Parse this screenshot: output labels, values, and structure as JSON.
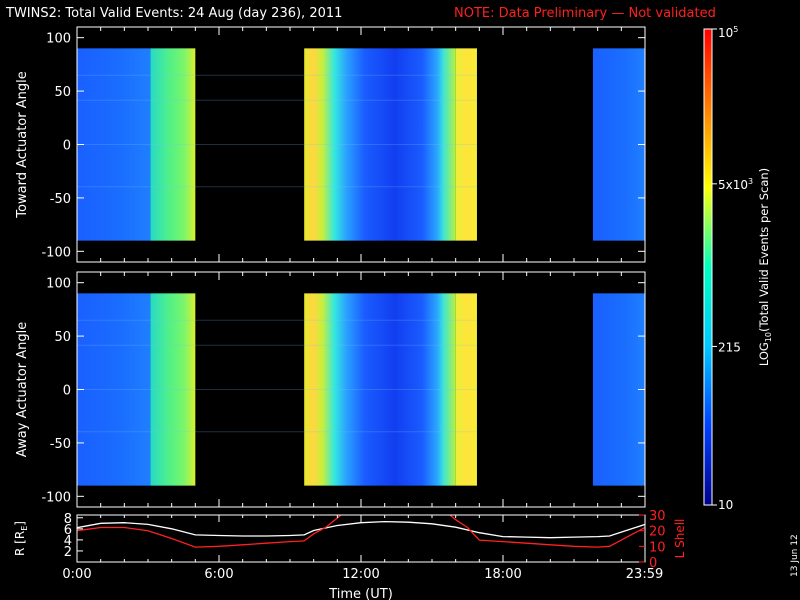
{
  "title": "TWINS2: Total Valid Events: 24 Aug (day 236), 2011",
  "note": "NOTE: Data Preliminary — Not validated",
  "datestamp": "13 Jun 12",
  "colors": {
    "colorbar": [
      "#00008b",
      "#0040ff",
      "#00c8ff",
      "#00ffc0",
      "#ffff00",
      "#ff8000",
      "#ff0000"
    ],
    "lshell": "#ff2020",
    "r": "#ffffff"
  },
  "chart_data": [
    {
      "type": "heatmap",
      "ylabel": "Toward Actuator Angle",
      "ylim": [
        -110,
        110
      ],
      "yticks": [
        100,
        50,
        0,
        -50,
        -100
      ],
      "ytick_labels": [
        "100",
        "50",
        "0",
        "-50",
        "-100"
      ],
      "data_ylim": [
        -90,
        90
      ],
      "x_hours": [
        0,
        24
      ],
      "blocks": [
        {
          "x": [
            0.0,
            3.1
          ],
          "level": "mid-blue"
        },
        {
          "x": [
            3.1,
            5.0
          ],
          "level": "cyan-green"
        },
        {
          "x": [
            5.0,
            9.6
          ],
          "level": "no data"
        },
        {
          "x": [
            9.6,
            16.0
          ],
          "level": "blue / yellow edges"
        },
        {
          "x": [
            16.0,
            16.9
          ],
          "level": "yellow"
        },
        {
          "x": [
            16.9,
            21.8
          ],
          "level": "no data"
        },
        {
          "x": [
            21.8,
            24.0
          ],
          "level": "mid-blue"
        }
      ]
    },
    {
      "type": "heatmap",
      "ylabel": "Away Actuator Angle",
      "ylim": [
        -110,
        110
      ],
      "yticks": [
        100,
        50,
        0,
        -50,
        -100
      ],
      "ytick_labels": [
        "100",
        "50",
        "0",
        "-50",
        "-100"
      ],
      "data_ylim": [
        -90,
        90
      ],
      "x_hours": [
        0,
        24
      ],
      "blocks": [
        {
          "x": [
            0.0,
            3.1
          ],
          "level": "mid-blue"
        },
        {
          "x": [
            3.1,
            5.0
          ],
          "level": "cyan-green"
        },
        {
          "x": [
            5.0,
            9.6
          ],
          "level": "no data"
        },
        {
          "x": [
            9.6,
            16.0
          ],
          "level": "blue / yellow edges"
        },
        {
          "x": [
            16.0,
            16.9
          ],
          "level": "yellow"
        },
        {
          "x": [
            16.9,
            21.8
          ],
          "level": "no data"
        },
        {
          "x": [
            21.8,
            24.0
          ],
          "level": "mid-blue"
        }
      ]
    },
    {
      "type": "line",
      "ylabel": "R [R",
      "ylabel_sub": "E",
      "ylabel_end": "]",
      "ylim": [
        0,
        8.5
      ],
      "yticks": [
        2,
        4,
        6,
        8
      ],
      "ytick_labels": [
        "2",
        "4",
        "6",
        "8"
      ],
      "y2label": "L Shell",
      "y2lim": [
        0,
        30
      ],
      "y2ticks": [
        0,
        10,
        20,
        30
      ],
      "y2tick_labels": [
        "0",
        "10",
        "20",
        "30"
      ],
      "xlabel": "Time (UT)",
      "xlim": [
        0,
        24
      ],
      "xticks": [
        0,
        6,
        12,
        18,
        23.98
      ],
      "xtick_labels": [
        "0:00",
        "6:00",
        "12:00",
        "18:00",
        "23:59"
      ],
      "series": [
        {
          "axis": "left",
          "color": "white",
          "x": [
            0,
            1,
            2,
            3,
            4,
            5,
            6,
            7,
            8,
            9,
            9.6,
            10,
            11,
            12,
            13,
            14,
            15,
            16,
            17,
            18,
            19,
            20,
            21,
            22,
            22.5,
            23,
            24
          ],
          "y": [
            6.2,
            7.0,
            7.1,
            6.8,
            6.0,
            4.9,
            4.8,
            4.7,
            4.7,
            4.8,
            4.9,
            5.7,
            6.6,
            7.1,
            7.3,
            7.2,
            6.9,
            6.3,
            5.3,
            4.6,
            4.5,
            4.4,
            4.5,
            4.6,
            4.7,
            5.4,
            6.8
          ]
        },
        {
          "axis": "right",
          "color": "red",
          "x": [
            0,
            1,
            2,
            3,
            4,
            5,
            6,
            7,
            8,
            9,
            9.6,
            10,
            10.5,
            11,
            11.3,
            15.6,
            16,
            16.5,
            17,
            18,
            19,
            20,
            21,
            22,
            22.5,
            23,
            24
          ],
          "y": [
            20,
            22,
            22,
            20,
            15,
            9.5,
            10,
            11,
            12,
            13,
            13.5,
            18,
            22,
            28,
            32,
            32,
            27,
            22,
            14,
            13,
            12,
            11,
            10,
            9.5,
            10,
            14,
            22
          ]
        }
      ]
    }
  ],
  "colorbar": {
    "label": "LOG",
    "label_sub": "10",
    "label_end": "(Total Valid Events per Scan)",
    "log_range": [
      10,
      100000
    ],
    "ticks": [
      {
        "value": 10,
        "label": "10"
      },
      {
        "value": 215,
        "label": "215"
      },
      {
        "value": 5000,
        "label": "5x10",
        "sup": "3"
      },
      {
        "value": 100000,
        "label": "10",
        "sup": "5"
      }
    ]
  }
}
